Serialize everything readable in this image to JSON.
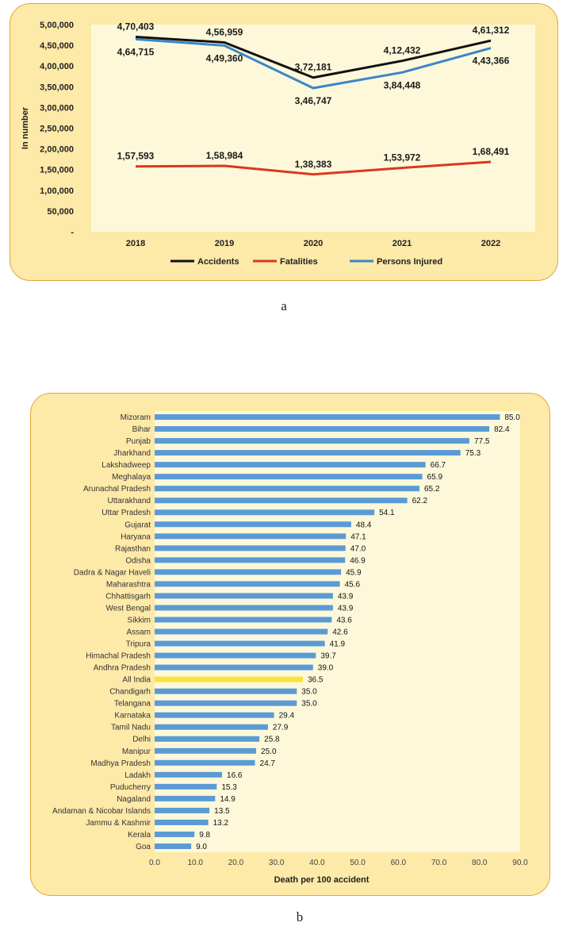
{
  "chart_data": [
    {
      "type": "line",
      "title": "",
      "ylabel": "In number",
      "xlabel": "",
      "categories": [
        "2018",
        "2019",
        "2020",
        "2021",
        "2022"
      ],
      "ylim": [
        0,
        500000
      ],
      "y_ticks": [
        "-",
        "50,000",
        "1,00,000",
        "1,50,000",
        "2,00,000",
        "2,50,000",
        "3,00,000",
        "3,50,000",
        "4,00,000",
        "4,50,000",
        "5,00,000"
      ],
      "series": [
        {
          "name": "Accidents",
          "color": "#111111",
          "values": [
            470403,
            456959,
            372181,
            412432,
            461312
          ],
          "labels": [
            "4,70,403",
            "4,56,959",
            "3,72,181",
            "4,12,432",
            "4,61,312"
          ],
          "label_pos": [
            "above",
            "above",
            "above",
            "above",
            "above"
          ]
        },
        {
          "name": "Fatalities",
          "color": "#d9381e",
          "values": [
            157593,
            158984,
            138383,
            153972,
            168491
          ],
          "labels": [
            "1,57,593",
            "1,58,984",
            "1,38,383",
            "1,53,972",
            "1,68,491"
          ],
          "label_pos": [
            "above",
            "above",
            "above",
            "above",
            "above"
          ]
        },
        {
          "name": "Persons Injured",
          "color": "#3a86c8",
          "values": [
            464715,
            449360,
            346747,
            384448,
            443366
          ],
          "labels": [
            "4,64,715",
            "4,49,360",
            "3,46,747",
            "3,84,448",
            "4,43,366"
          ],
          "label_pos": [
            "below",
            "below",
            "below",
            "below",
            "below"
          ]
        }
      ],
      "legend": "bottom",
      "caption": "a"
    },
    {
      "type": "bar",
      "orientation": "horizontal",
      "xlabel": "Death per 100 accident",
      "ylabel": "",
      "xlim": [
        0,
        90
      ],
      "x_ticks": [
        "0.0",
        "10.0",
        "20.0",
        "30.0",
        "40.0",
        "50.0",
        "60.0",
        "70.0",
        "80.0",
        "90.0"
      ],
      "bar_color": "#5b9bd5",
      "highlight_color": "#f7e33a",
      "highlight_category": "All India",
      "categories": [
        "Mizoram",
        "Bihar",
        "Punjab",
        "Jharkhand",
        "Lakshadweep",
        "Meghalaya",
        "Arunachal Pradesh",
        "Uttarakhand",
        "Uttar Pradesh",
        "Gujarat",
        "Haryana",
        "Rajasthan",
        "Odisha",
        "Dadra & Nagar Haveli",
        "Maharashtra",
        "Chhattisgarh",
        "West Bengal",
        "Sikkim",
        "Assam",
        "Tripura",
        "Himachal Pradesh",
        "Andhra Pradesh",
        "All India",
        "Chandigarh",
        "Telangana",
        "Karnataka",
        "Tamil Nadu",
        "Delhi",
        "Manipur",
        "Madhya Pradesh",
        "Ladakh",
        "Puducherry",
        "Nagaland",
        "Andaman & Nicobar Islands",
        "Jammu & Kashmir",
        "Kerala",
        "Goa"
      ],
      "values": [
        85.0,
        82.4,
        77.5,
        75.3,
        66.7,
        65.9,
        65.2,
        62.2,
        54.1,
        48.4,
        47.1,
        47.0,
        46.9,
        45.9,
        45.6,
        43.9,
        43.9,
        43.6,
        42.6,
        41.9,
        39.7,
        39.0,
        36.5,
        35.0,
        35.0,
        29.4,
        27.9,
        25.8,
        25.0,
        24.7,
        16.6,
        15.3,
        14.9,
        13.5,
        13.2,
        9.8,
        9.0
      ],
      "value_labels": [
        "85.0",
        "82.4",
        "77.5",
        "75.3",
        "66.7",
        "65.9",
        "65.2",
        "62.2",
        "54.1",
        "48.4",
        "47.1",
        "47.0",
        "46.9",
        "45.9",
        "45.6",
        "43.9",
        "43.9",
        "43.6",
        "42.6",
        "41.9",
        "39.7",
        "39.0",
        "36.5",
        "35.0",
        "35.0",
        "29.4",
        "27.9",
        "25.8",
        "25.0",
        "24.7",
        "16.6",
        "15.3",
        "14.9",
        "13.5",
        "13.2",
        "9.8",
        "9.0"
      ],
      "caption": "b"
    }
  ]
}
